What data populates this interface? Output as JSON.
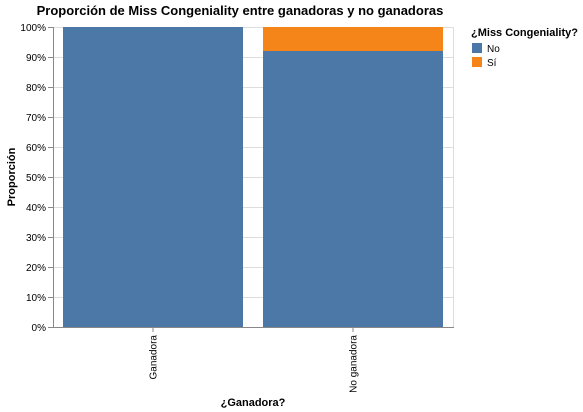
{
  "chart_data": {
    "type": "bar",
    "stacked": true,
    "normalized": true,
    "title": "Proporción de Miss Congeniality entre ganadoras y no ganadoras",
    "xlabel": "¿Ganadora?",
    "ylabel": "Proporción",
    "categories": [
      "Ganadora",
      "No ganadora"
    ],
    "series": [
      {
        "name": "No",
        "values": [
          1.0,
          0.92
        ],
        "color": "#4c78a8"
      },
      {
        "name": "Sí",
        "values": [
          0.0,
          0.08
        ],
        "color": "#f58518"
      }
    ],
    "ylim": [
      0,
      1
    ],
    "yticks": [
      "0%",
      "10%",
      "20%",
      "30%",
      "40%",
      "50%",
      "60%",
      "70%",
      "80%",
      "90%",
      "100%"
    ],
    "grid": true,
    "legend": {
      "title": "¿Miss Congeniality?",
      "position": "right"
    }
  }
}
